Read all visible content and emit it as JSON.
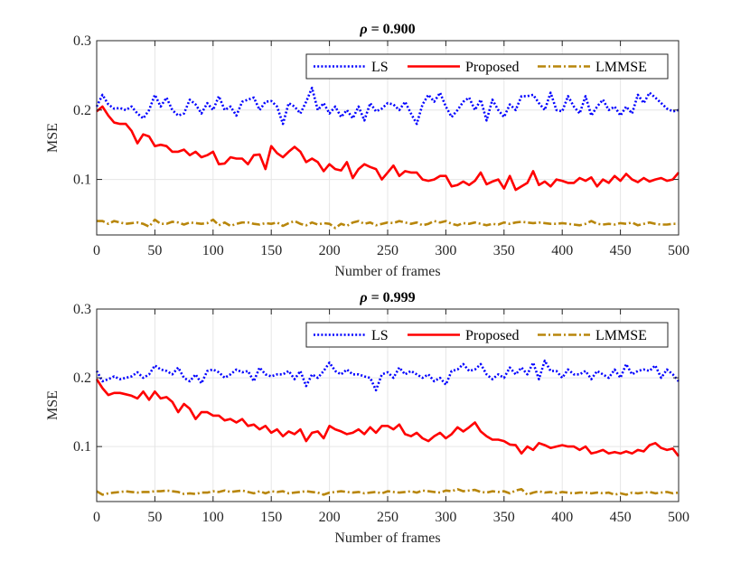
{
  "chart_data": [
    {
      "type": "line",
      "title_symbol": "ρ",
      "title_value": " = 0.900",
      "xlabel": "Number of frames",
      "ylabel": "MSE",
      "xlim": [
        0,
        500
      ],
      "ylim": [
        0.02,
        0.3
      ],
      "xticks": [
        0,
        50,
        100,
        150,
        200,
        250,
        300,
        350,
        400,
        450,
        500
      ],
      "yticks": [
        0.1,
        0.2,
        0.3
      ],
      "ytick_labels": [
        "0.1",
        "0.2",
        "0.3"
      ],
      "grid": true,
      "legend_position": "top-right",
      "legend_orientation": "horizontal",
      "x": [
        0,
        5,
        10,
        15,
        20,
        25,
        30,
        35,
        40,
        45,
        50,
        55,
        60,
        65,
        70,
        75,
        80,
        85,
        90,
        95,
        100,
        105,
        110,
        115,
        120,
        125,
        130,
        135,
        140,
        145,
        150,
        155,
        160,
        165,
        170,
        175,
        180,
        185,
        190,
        195,
        200,
        205,
        210,
        215,
        220,
        225,
        230,
        235,
        240,
        245,
        250,
        255,
        260,
        265,
        270,
        275,
        280,
        285,
        290,
        295,
        300,
        305,
        310,
        315,
        320,
        325,
        330,
        335,
        340,
        345,
        350,
        355,
        360,
        365,
        370,
        375,
        380,
        385,
        390,
        395,
        400,
        405,
        410,
        415,
        420,
        425,
        430,
        435,
        440,
        445,
        450,
        455,
        460,
        465,
        470,
        475,
        480,
        485,
        490,
        495,
        500
      ],
      "series": [
        {
          "name": "LS",
          "color": "#0000ff",
          "style": "dotted",
          "values": [
            0.205,
            0.222,
            0.208,
            0.202,
            0.203,
            0.2,
            0.205,
            0.195,
            0.188,
            0.2,
            0.222,
            0.205,
            0.218,
            0.2,
            0.192,
            0.195,
            0.215,
            0.208,
            0.195,
            0.21,
            0.2,
            0.22,
            0.2,
            0.205,
            0.192,
            0.212,
            0.215,
            0.218,
            0.2,
            0.212,
            0.213,
            0.205,
            0.18,
            0.21,
            0.205,
            0.195,
            0.212,
            0.232,
            0.2,
            0.21,
            0.195,
            0.205,
            0.19,
            0.2,
            0.188,
            0.205,
            0.185,
            0.21,
            0.198,
            0.202,
            0.21,
            0.208,
            0.2,
            0.212,
            0.195,
            0.18,
            0.208,
            0.222,
            0.212,
            0.225,
            0.205,
            0.19,
            0.2,
            0.212,
            0.218,
            0.2,
            0.215,
            0.185,
            0.215,
            0.2,
            0.19,
            0.208,
            0.2,
            0.22,
            0.22,
            0.222,
            0.21,
            0.2,
            0.225,
            0.2,
            0.198,
            0.22,
            0.205,
            0.195,
            0.22,
            0.192,
            0.205,
            0.215,
            0.2,
            0.205,
            0.192,
            0.205,
            0.195,
            0.222,
            0.21,
            0.225,
            0.218,
            0.21,
            0.202,
            0.198,
            0.2
          ]
        },
        {
          "name": "Proposed",
          "color": "#ff0000",
          "style": "solid",
          "values": [
            0.198,
            0.205,
            0.192,
            0.182,
            0.18,
            0.18,
            0.17,
            0.152,
            0.165,
            0.162,
            0.148,
            0.15,
            0.148,
            0.14,
            0.14,
            0.143,
            0.135,
            0.14,
            0.132,
            0.135,
            0.14,
            0.122,
            0.123,
            0.132,
            0.13,
            0.13,
            0.122,
            0.135,
            0.136,
            0.115,
            0.148,
            0.138,
            0.132,
            0.14,
            0.147,
            0.14,
            0.125,
            0.13,
            0.125,
            0.112,
            0.122,
            0.115,
            0.113,
            0.125,
            0.102,
            0.115,
            0.122,
            0.118,
            0.115,
            0.1,
            0.11,
            0.12,
            0.105,
            0.112,
            0.11,
            0.11,
            0.1,
            0.098,
            0.1,
            0.105,
            0.105,
            0.09,
            0.092,
            0.097,
            0.092,
            0.098,
            0.11,
            0.093,
            0.097,
            0.1,
            0.087,
            0.105,
            0.085,
            0.09,
            0.095,
            0.112,
            0.092,
            0.097,
            0.09,
            0.1,
            0.098,
            0.095,
            0.095,
            0.102,
            0.098,
            0.103,
            0.09,
            0.1,
            0.095,
            0.105,
            0.098,
            0.108,
            0.1,
            0.096,
            0.102,
            0.097,
            0.1,
            0.102,
            0.098,
            0.1,
            0.11
          ]
        },
        {
          "name": "LMMSE",
          "color": "#b8860b",
          "style": "dashdot",
          "values": [
            0.04,
            0.04,
            0.036,
            0.04,
            0.038,
            0.036,
            0.037,
            0.038,
            0.036,
            0.032,
            0.042,
            0.036,
            0.036,
            0.039,
            0.038,
            0.035,
            0.038,
            0.037,
            0.036,
            0.037,
            0.042,
            0.034,
            0.038,
            0.033,
            0.036,
            0.038,
            0.038,
            0.036,
            0.035,
            0.037,
            0.036,
            0.038,
            0.033,
            0.037,
            0.04,
            0.036,
            0.034,
            0.038,
            0.035,
            0.037,
            0.036,
            0.03,
            0.036,
            0.033,
            0.038,
            0.04,
            0.036,
            0.038,
            0.034,
            0.036,
            0.038,
            0.037,
            0.04,
            0.038,
            0.036,
            0.038,
            0.034,
            0.036,
            0.04,
            0.038,
            0.04,
            0.036,
            0.034,
            0.037,
            0.036,
            0.038,
            0.036,
            0.034,
            0.036,
            0.035,
            0.038,
            0.036,
            0.038,
            0.039,
            0.038,
            0.037,
            0.038,
            0.037,
            0.036,
            0.036,
            0.037,
            0.036,
            0.035,
            0.034,
            0.036,
            0.04,
            0.036,
            0.035,
            0.036,
            0.035,
            0.037,
            0.036,
            0.038,
            0.034,
            0.036,
            0.038,
            0.036,
            0.035,
            0.035,
            0.036,
            0.036
          ]
        }
      ]
    },
    {
      "type": "line",
      "title_symbol": "ρ",
      "title_value": " = 0.999",
      "xlabel": "Number of frames",
      "ylabel": "MSE",
      "xlim": [
        0,
        500
      ],
      "ylim": [
        0.02,
        0.3
      ],
      "xticks": [
        0,
        50,
        100,
        150,
        200,
        250,
        300,
        350,
        400,
        450,
        500
      ],
      "yticks": [
        0.1,
        0.2,
        0.3
      ],
      "ytick_labels": [
        "0.1",
        "0.2",
        "0.3"
      ],
      "grid": true,
      "legend_position": "top-right",
      "legend_orientation": "horizontal",
      "x": [
        0,
        5,
        10,
        15,
        20,
        25,
        30,
        35,
        40,
        45,
        50,
        55,
        60,
        65,
        70,
        75,
        80,
        85,
        90,
        95,
        100,
        105,
        110,
        115,
        120,
        125,
        130,
        135,
        140,
        145,
        150,
        155,
        160,
        165,
        170,
        175,
        180,
        185,
        190,
        195,
        200,
        205,
        210,
        215,
        220,
        225,
        230,
        235,
        240,
        245,
        250,
        255,
        260,
        265,
        270,
        275,
        280,
        285,
        290,
        295,
        300,
        305,
        310,
        315,
        320,
        325,
        330,
        335,
        340,
        345,
        350,
        355,
        360,
        365,
        370,
        375,
        380,
        385,
        390,
        395,
        400,
        405,
        410,
        415,
        420,
        425,
        430,
        435,
        440,
        445,
        450,
        455,
        460,
        465,
        470,
        475,
        480,
        485,
        490,
        495,
        500
      ],
      "series": [
        {
          "name": "LS",
          "color": "#0000ff",
          "style": "dotted",
          "values": [
            0.21,
            0.195,
            0.198,
            0.202,
            0.198,
            0.2,
            0.202,
            0.208,
            0.2,
            0.205,
            0.218,
            0.212,
            0.21,
            0.205,
            0.215,
            0.2,
            0.195,
            0.205,
            0.192,
            0.21,
            0.212,
            0.208,
            0.2,
            0.205,
            0.212,
            0.208,
            0.21,
            0.195,
            0.215,
            0.205,
            0.202,
            0.205,
            0.205,
            0.21,
            0.198,
            0.21,
            0.188,
            0.205,
            0.2,
            0.21,
            0.222,
            0.21,
            0.205,
            0.212,
            0.205,
            0.205,
            0.202,
            0.2,
            0.182,
            0.205,
            0.208,
            0.2,
            0.215,
            0.205,
            0.21,
            0.205,
            0.2,
            0.205,
            0.195,
            0.2,
            0.19,
            0.21,
            0.212,
            0.22,
            0.21,
            0.212,
            0.22,
            0.205,
            0.198,
            0.205,
            0.2,
            0.215,
            0.205,
            0.215,
            0.205,
            0.222,
            0.198,
            0.225,
            0.21,
            0.21,
            0.2,
            0.212,
            0.205,
            0.205,
            0.21,
            0.198,
            0.21,
            0.205,
            0.2,
            0.212,
            0.2,
            0.22,
            0.205,
            0.21,
            0.212,
            0.21,
            0.218,
            0.2,
            0.212,
            0.205,
            0.195
          ]
        },
        {
          "name": "Proposed",
          "color": "#ff0000",
          "style": "solid",
          "values": [
            0.198,
            0.185,
            0.175,
            0.178,
            0.178,
            0.176,
            0.174,
            0.17,
            0.18,
            0.168,
            0.18,
            0.17,
            0.172,
            0.165,
            0.15,
            0.162,
            0.155,
            0.14,
            0.15,
            0.15,
            0.145,
            0.145,
            0.138,
            0.14,
            0.135,
            0.14,
            0.13,
            0.132,
            0.125,
            0.13,
            0.12,
            0.125,
            0.115,
            0.122,
            0.118,
            0.125,
            0.108,
            0.12,
            0.122,
            0.112,
            0.13,
            0.125,
            0.122,
            0.118,
            0.12,
            0.125,
            0.118,
            0.128,
            0.12,
            0.13,
            0.13,
            0.125,
            0.132,
            0.118,
            0.115,
            0.12,
            0.112,
            0.108,
            0.115,
            0.12,
            0.112,
            0.118,
            0.128,
            0.122,
            0.128,
            0.135,
            0.122,
            0.115,
            0.11,
            0.11,
            0.108,
            0.103,
            0.102,
            0.09,
            0.1,
            0.095,
            0.105,
            0.102,
            0.098,
            0.1,
            0.102,
            0.1,
            0.1,
            0.095,
            0.1,
            0.09,
            0.092,
            0.095,
            0.09,
            0.092,
            0.09,
            0.093,
            0.09,
            0.095,
            0.093,
            0.102,
            0.105,
            0.098,
            0.095,
            0.097,
            0.086
          ]
        },
        {
          "name": "LMMSE",
          "color": "#b8860b",
          "style": "dashdot",
          "values": [
            0.035,
            0.03,
            0.032,
            0.033,
            0.034,
            0.035,
            0.034,
            0.033,
            0.034,
            0.034,
            0.035,
            0.035,
            0.036,
            0.035,
            0.034,
            0.031,
            0.032,
            0.031,
            0.033,
            0.033,
            0.035,
            0.034,
            0.036,
            0.034,
            0.035,
            0.036,
            0.034,
            0.032,
            0.035,
            0.032,
            0.035,
            0.034,
            0.035,
            0.032,
            0.033,
            0.034,
            0.035,
            0.034,
            0.033,
            0.03,
            0.033,
            0.034,
            0.035,
            0.034,
            0.033,
            0.034,
            0.032,
            0.033,
            0.034,
            0.032,
            0.035,
            0.034,
            0.033,
            0.034,
            0.035,
            0.033,
            0.036,
            0.035,
            0.034,
            0.033,
            0.036,
            0.035,
            0.038,
            0.035,
            0.036,
            0.037,
            0.034,
            0.033,
            0.035,
            0.034,
            0.035,
            0.032,
            0.036,
            0.038,
            0.03,
            0.033,
            0.035,
            0.033,
            0.034,
            0.032,
            0.034,
            0.033,
            0.032,
            0.033,
            0.033,
            0.032,
            0.033,
            0.032,
            0.033,
            0.03,
            0.032,
            0.03,
            0.033,
            0.032,
            0.033,
            0.034,
            0.032,
            0.033,
            0.034,
            0.032,
            0.033
          ]
        }
      ]
    }
  ]
}
